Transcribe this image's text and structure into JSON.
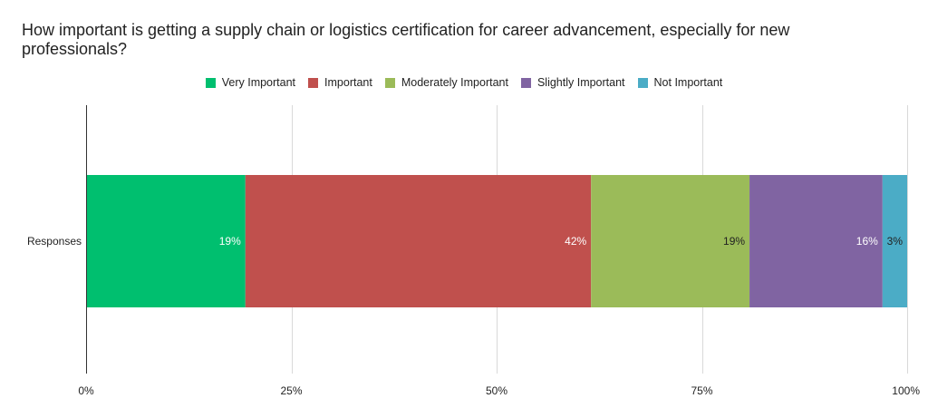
{
  "chart_data": {
    "type": "bar",
    "orientation": "horizontal",
    "stacked": "percent",
    "title": "How important is getting a supply chain or logistics certification for career advancement, especially for new professionals?",
    "categories": [
      "Responses"
    ],
    "series": [
      {
        "name": "Very Important",
        "values": [
          19.4
        ],
        "label": "19%",
        "color": "#00bf6f",
        "label_color": "#ffffff"
      },
      {
        "name": "Important",
        "values": [
          42.1
        ],
        "label": "42%",
        "color": "#c0504d",
        "label_color": "#ffffff"
      },
      {
        "name": "Moderately Important",
        "values": [
          19.3
        ],
        "label": "19%",
        "color": "#9bbb59",
        "label_color": "#222222"
      },
      {
        "name": "Slightly Important",
        "values": [
          16.2
        ],
        "label": "16%",
        "color": "#8064a2",
        "label_color": "#ffffff"
      },
      {
        "name": "Not Important",
        "values": [
          3.0
        ],
        "label": "3%",
        "color": "#4bacc6",
        "label_color": "#222222"
      }
    ],
    "x_ticks": [
      "0%",
      "25%",
      "50%",
      "75%",
      "100%"
    ],
    "x_tick_values": [
      0,
      25,
      50,
      75,
      100
    ],
    "xlim": [
      0,
      100
    ],
    "grid": true,
    "legend_position": "top",
    "xlabel": "",
    "ylabel": ""
  }
}
